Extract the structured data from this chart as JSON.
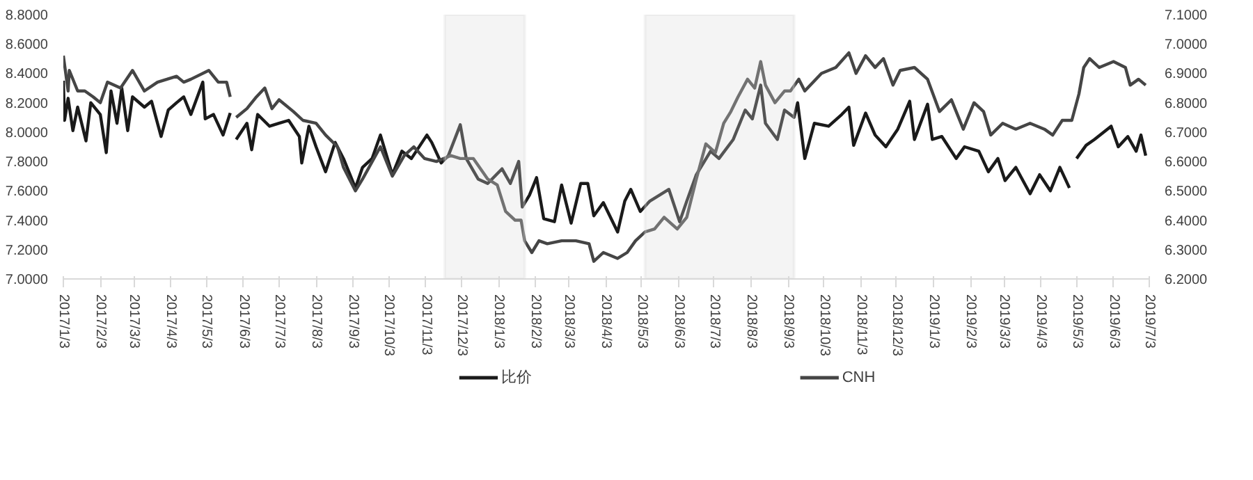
{
  "chart_data": {
    "type": "line",
    "grid": false,
    "legend": "bottom",
    "marker": "none",
    "line_style": "solid",
    "xlim": [
      "2017-01-03",
      "2019-07-03"
    ],
    "xticks": [
      {
        "value": "2017-01-03",
        "label": "2017/1/3"
      },
      {
        "value": "2017-02-03",
        "label": "2017/2/3"
      },
      {
        "value": "2017-03-03",
        "label": "2017/3/3"
      },
      {
        "value": "2017-04-03",
        "label": "2017/4/3"
      },
      {
        "value": "2017-05-03",
        "label": "2017/5/3"
      },
      {
        "value": "2017-06-03",
        "label": "2017/6/3"
      },
      {
        "value": "2017-07-03",
        "label": "2017/7/3"
      },
      {
        "value": "2017-08-03",
        "label": "2017/8/3"
      },
      {
        "value": "2017-09-03",
        "label": "2017/9/3"
      },
      {
        "value": "2017-10-03",
        "label": "2017/10/3"
      },
      {
        "value": "2017-11-03",
        "label": "2017/11/3"
      },
      {
        "value": "2017-12-03",
        "label": "2017/12/3"
      },
      {
        "value": "2018-01-03",
        "label": "2018/1/3"
      },
      {
        "value": "2018-02-03",
        "label": "2018/2/3"
      },
      {
        "value": "2018-03-03",
        "label": "2018/3/3"
      },
      {
        "value": "2018-04-03",
        "label": "2018/4/3"
      },
      {
        "value": "2018-05-03",
        "label": "2018/5/3"
      },
      {
        "value": "2018-06-03",
        "label": "2018/6/3"
      },
      {
        "value": "2018-07-03",
        "label": "2018/7/3"
      },
      {
        "value": "2018-08-03",
        "label": "2018/8/3"
      },
      {
        "value": "2018-09-03",
        "label": "2018/9/3"
      },
      {
        "value": "2018-10-03",
        "label": "2018/10/3"
      },
      {
        "value": "2018-11-03",
        "label": "2018/11/3"
      },
      {
        "value": "2018-12-03",
        "label": "2018/12/3"
      },
      {
        "value": "2019-01-03",
        "label": "2019/1/3"
      },
      {
        "value": "2019-02-03",
        "label": "2019/2/3"
      },
      {
        "value": "2019-03-03",
        "label": "2019/3/3"
      },
      {
        "value": "2019-04-03",
        "label": "2019/4/3"
      },
      {
        "value": "2019-05-03",
        "label": "2019/5/3"
      },
      {
        "value": "2019-06-03",
        "label": "2019/6/3"
      },
      {
        "value": "2019-07-03",
        "label": "2019/7/3"
      }
    ],
    "ylim": [
      7.0,
      8.8
    ],
    "yticks": [
      {
        "value": 7.0,
        "label": "7.0000"
      },
      {
        "value": 7.2,
        "label": "7.2000"
      },
      {
        "value": 7.4,
        "label": "7.4000"
      },
      {
        "value": 7.6,
        "label": "7.6000"
      },
      {
        "value": 7.8,
        "label": "7.8000"
      },
      {
        "value": 8.0,
        "label": "8.0000"
      },
      {
        "value": 8.2,
        "label": "8.2000"
      },
      {
        "value": 8.4,
        "label": "8.4000"
      },
      {
        "value": 8.6,
        "label": "8.6000"
      },
      {
        "value": 8.8,
        "label": "8.8000"
      }
    ],
    "y2lim": [
      6.2,
      7.1
    ],
    "y2ticks": [
      {
        "value": 6.2,
        "label": "6.2000"
      },
      {
        "value": 6.3,
        "label": "6.3000"
      },
      {
        "value": 6.4,
        "label": "6.4000"
      },
      {
        "value": 6.5,
        "label": "6.5000"
      },
      {
        "value": 6.6,
        "label": "6.6000"
      },
      {
        "value": 6.7,
        "label": "6.7000"
      },
      {
        "value": 6.8,
        "label": "6.8000"
      },
      {
        "value": 6.9,
        "label": "6.9000"
      },
      {
        "value": 7.0,
        "label": "7.0000"
      },
      {
        "value": 7.1,
        "label": "7.1000"
      }
    ],
    "bands": [
      {
        "axis": "x",
        "from": "2017-11-19",
        "to": "2018-01-25",
        "color": "#d9d9d9"
      },
      {
        "axis": "x",
        "from": "2018-05-06",
        "to": "2018-09-08",
        "color": "#d9d9d9"
      }
    ],
    "series": [
      {
        "name": "比价",
        "color": "#1a1a1a",
        "x": [
          "2017-01-03",
          "2017-01-04",
          "2017-01-07",
          "2017-01-11",
          "2017-01-15",
          "2017-01-22",
          "2017-01-26",
          "2017-02-03",
          "2017-02-08",
          "2017-02-12",
          "2017-02-17",
          "2017-02-21",
          "2017-02-26",
          "2017-03-02",
          "2017-03-12",
          "2017-03-18",
          "2017-03-26",
          "2017-04-01",
          "2017-04-08",
          "2017-04-14",
          "2017-04-20",
          "2017-04-30",
          "2017-05-02",
          "2017-05-09",
          "2017-05-17",
          "2017-05-23",
          "2017-05-26",
          "2017-05-28",
          "2017-06-06",
          "2017-06-10",
          "2017-06-15",
          "2017-06-25",
          "2017-07-03",
          "2017-07-11",
          "2017-07-20",
          "2017-07-22",
          "2017-07-28",
          "2017-08-03",
          "2017-08-11",
          "2017-08-19",
          "2017-08-26",
          "2017-09-05",
          "2017-09-11",
          "2017-09-19",
          "2017-09-26",
          "2017-10-06",
          "2017-10-14",
          "2017-10-22",
          "2017-11-04",
          "2017-11-08",
          "2017-11-16",
          "2017-11-22",
          "2017-12-02",
          "2017-12-07",
          "2017-12-17",
          "2017-12-25",
          "2018-01-06",
          "2018-01-13",
          "2018-01-20",
          "2018-01-23",
          "2018-01-29",
          "2018-02-04",
          "2018-02-10",
          "2018-02-19",
          "2018-02-25",
          "2018-03-05",
          "2018-03-13",
          "2018-03-19",
          "2018-03-24",
          "2018-04-01",
          "2018-04-13",
          "2018-04-19",
          "2018-04-24",
          "2018-05-02",
          "2018-05-10",
          "2018-05-26",
          "2018-06-04",
          "2018-06-10",
          "2018-06-18",
          "2018-06-30",
          "2018-07-07",
          "2018-07-19",
          "2018-07-29",
          "2018-08-04",
          "2018-08-11",
          "2018-08-15",
          "2018-08-25",
          "2018-08-31",
          "2018-09-08",
          "2018-09-11",
          "2018-09-17",
          "2018-09-25",
          "2018-10-07",
          "2018-10-18",
          "2018-10-24",
          "2018-10-28",
          "2018-11-07",
          "2018-11-15",
          "2018-11-24",
          "2018-12-04",
          "2018-12-14",
          "2018-12-18",
          "2018-12-29",
          "2019-01-02",
          "2019-01-10",
          "2019-01-22",
          "2019-01-29",
          "2019-02-10",
          "2019-02-18",
          "2019-02-26",
          "2019-03-04",
          "2019-03-13",
          "2019-03-25",
          "2019-04-02",
          "2019-04-11",
          "2019-04-19",
          "2019-04-27",
          "2019-05-01",
          "2019-05-03",
          "2019-05-11",
          "2019-05-18",
          "2019-06-01",
          "2019-06-07",
          "2019-06-15",
          "2019-06-22",
          "2019-06-26",
          "2019-06-30"
        ],
        "values": [
          8.35,
          8.08,
          8.23,
          8.01,
          8.17,
          7.94,
          8.2,
          8.12,
          7.86,
          8.28,
          8.06,
          8.3,
          8.01,
          8.24,
          8.17,
          8.21,
          7.97,
          8.15,
          8.2,
          8.24,
          8.12,
          8.34,
          8.09,
          8.12,
          7.98,
          8.13,
          null,
          7.95,
          8.06,
          7.88,
          8.12,
          8.04,
          8.06,
          8.08,
          7.97,
          7.79,
          8.04,
          7.9,
          7.73,
          7.93,
          7.82,
          7.62,
          7.76,
          7.82,
          7.98,
          7.71,
          7.87,
          7.82,
          7.98,
          7.93,
          7.79,
          7.84,
          8.05,
          7.82,
          7.68,
          7.65,
          7.75,
          7.65,
          7.8,
          7.49,
          7.57,
          7.69,
          7.41,
          7.39,
          7.64,
          7.38,
          7.65,
          7.65,
          7.43,
          7.52,
          7.32,
          7.53,
          7.61,
          7.46,
          7.53,
          7.61,
          7.39,
          7.53,
          7.71,
          7.87,
          7.82,
          7.95,
          8.15,
          8.09,
          8.32,
          8.06,
          7.95,
          8.15,
          8.1,
          8.2,
          7.82,
          8.06,
          8.04,
          8.12,
          8.17,
          7.91,
          8.13,
          7.98,
          7.9,
          8.02,
          8.21,
          7.95,
          8.19,
          7.95,
          7.97,
          7.82,
          7.9,
          7.87,
          7.73,
          7.82,
          7.67,
          7.76,
          7.58,
          7.71,
          7.6,
          7.76,
          7.62,
          null,
          7.82,
          7.91,
          7.95,
          8.04,
          7.9,
          7.97,
          7.87,
          7.98,
          7.84
        ]
      },
      {
        "name": "CNH",
        "color": "#454545",
        "axis": "y2",
        "x": [
          "2017-01-03",
          "2017-01-07",
          "2017-01-08",
          "2017-01-15",
          "2017-01-21",
          "2017-01-28",
          "2017-02-03",
          "2017-02-09",
          "2017-02-20",
          "2017-03-02",
          "2017-03-12",
          "2017-03-23",
          "2017-04-08",
          "2017-04-14",
          "2017-04-20",
          "2017-05-05",
          "2017-05-13",
          "2017-05-20",
          "2017-05-23",
          "2017-05-26",
          "2017-05-28",
          "2017-06-06",
          "2017-06-14",
          "2017-06-21",
          "2017-06-27",
          "2017-07-03",
          "2017-07-15",
          "2017-07-23",
          "2017-08-03",
          "2017-08-11",
          "2017-08-21",
          "2017-08-26",
          "2017-09-05",
          "2017-09-11",
          "2017-09-26",
          "2017-10-06",
          "2017-10-16",
          "2017-10-24",
          "2017-11-02",
          "2017-11-12",
          "2017-11-24",
          "2017-12-02",
          "2017-12-13",
          "2017-12-25",
          "2018-01-02",
          "2018-01-09",
          "2018-01-17",
          "2018-01-22",
          "2018-01-25",
          "2018-01-31",
          "2018-02-06",
          "2018-02-13",
          "2018-02-25",
          "2018-03-09",
          "2018-03-20",
          "2018-03-24",
          "2018-04-01",
          "2018-04-13",
          "2018-04-21",
          "2018-04-28",
          "2018-05-06",
          "2018-05-14",
          "2018-05-22",
          "2018-06-02",
          "2018-06-10",
          "2018-06-18",
          "2018-06-26",
          "2018-07-04",
          "2018-07-11",
          "2018-07-17",
          "2018-07-23",
          "2018-07-31",
          "2018-08-06",
          "2018-08-11",
          "2018-08-15",
          "2018-08-23",
          "2018-08-31",
          "2018-09-05",
          "2018-09-12",
          "2018-09-17",
          "2018-10-01",
          "2018-10-13",
          "2018-10-24",
          "2018-10-30",
          "2018-11-07",
          "2018-11-15",
          "2018-11-22",
          "2018-11-30",
          "2018-12-06",
          "2018-12-18",
          "2018-12-29",
          "2019-01-08",
          "2019-01-18",
          "2019-01-28",
          "2019-02-06",
          "2019-02-14",
          "2019-02-20",
          "2019-03-02",
          "2019-03-13",
          "2019-03-25",
          "2019-04-06",
          "2019-04-13",
          "2019-04-21",
          "2019-04-29",
          "2019-05-05",
          "2019-05-09",
          "2019-05-14",
          "2019-05-22",
          "2019-06-03",
          "2019-06-13",
          "2019-06-17",
          "2019-06-24",
          "2019-06-30"
        ],
        "values": [
          6.96,
          6.84,
          6.91,
          6.84,
          6.84,
          6.82,
          6.8,
          6.87,
          6.85,
          6.91,
          6.84,
          6.87,
          6.89,
          6.87,
          6.88,
          6.91,
          6.87,
          6.87,
          6.82,
          null,
          6.75,
          6.78,
          6.82,
          6.85,
          6.78,
          6.81,
          6.77,
          6.74,
          6.73,
          6.69,
          6.65,
          6.58,
          6.5,
          6.54,
          6.65,
          6.55,
          6.62,
          6.65,
          6.61,
          6.6,
          6.62,
          6.61,
          6.61,
          6.54,
          6.52,
          6.43,
          6.4,
          6.4,
          6.33,
          6.29,
          6.33,
          6.32,
          6.33,
          6.33,
          6.32,
          6.26,
          6.29,
          6.27,
          6.29,
          6.33,
          6.36,
          6.37,
          6.41,
          6.37,
          6.41,
          6.54,
          6.66,
          6.63,
          6.73,
          6.77,
          6.82,
          6.88,
          6.85,
          6.94,
          6.86,
          6.8,
          6.84,
          6.84,
          6.88,
          6.84,
          6.9,
          6.92,
          6.97,
          6.9,
          6.96,
          6.92,
          6.95,
          6.86,
          6.91,
          6.92,
          6.88,
          6.77,
          6.81,
          6.71,
          6.8,
          6.77,
          6.69,
          6.73,
          6.71,
          6.73,
          6.71,
          6.69,
          6.74,
          6.74,
          6.83,
          6.92,
          6.95,
          6.92,
          6.94,
          6.92,
          6.86,
          6.88,
          6.86
        ]
      }
    ]
  }
}
